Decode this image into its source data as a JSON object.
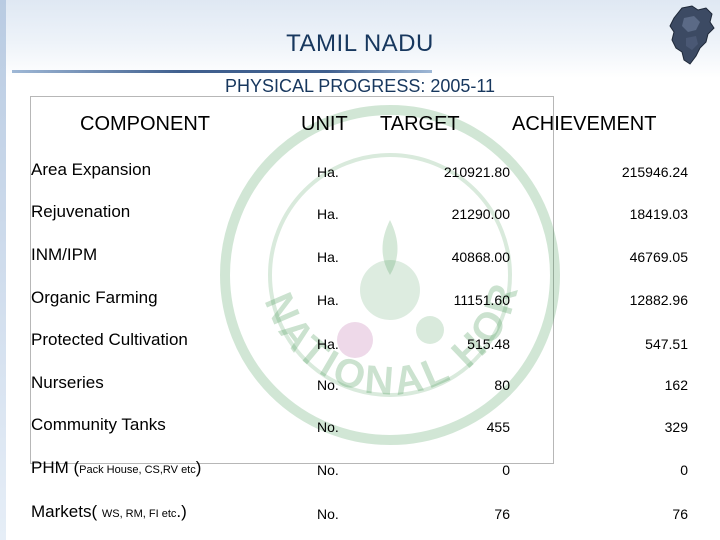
{
  "slide": {
    "title": "TAMIL NADU",
    "subtitle": "PHYSICAL PROGRESS: 2005-11"
  },
  "table": {
    "headers": {
      "component": "COMPONENT",
      "unit": "UNIT",
      "target": "TARGET",
      "achievement": "ACHIEVEMENT"
    },
    "rows": [
      {
        "component": "Area Expansion",
        "unit": "Ha.",
        "target": "210921.80",
        "achievement": "215946.24"
      },
      {
        "component": "Rejuvenation",
        "unit": "Ha.",
        "target": "21290.00",
        "achievement": "18419.03"
      },
      {
        "component": "INM/IPM",
        "unit": "Ha.",
        "target": "40868.00",
        "achievement": "46769.05"
      },
      {
        "component": "Organic Farming",
        "unit": "Ha.",
        "target": "11151.60",
        "achievement": "12882.96"
      },
      {
        "component": "Protected Cultivation",
        "unit": "Ha.",
        "target": "515.48",
        "achievement": "547.51"
      },
      {
        "component": "Nurseries",
        "unit": "No.",
        "target": "80",
        "achievement": "162"
      },
      {
        "component": "Community Tanks",
        "unit": "No.",
        "target": "455",
        "achievement": "329"
      },
      {
        "component_main": "PHM (",
        "component_small": "Pack House, CS,RV etc",
        "component_end": ")",
        "unit": "No.",
        "target": "0",
        "achievement": "0"
      },
      {
        "component_main": "Markets( ",
        "component_small": "WS, RM, FI etc",
        "component_end": ".)",
        "unit": "No.",
        "target": "76",
        "achievement": "76"
      }
    ]
  },
  "watermark": {
    "text": "NATIONAL HORTICULTURE MISSION",
    "color": "#2e8b3e"
  },
  "colors": {
    "title": "#17375e",
    "accent_bar": "#3f5f8e"
  },
  "icons": [
    "tamil-nadu-map-icon",
    "nhm-emblem-watermark"
  ]
}
